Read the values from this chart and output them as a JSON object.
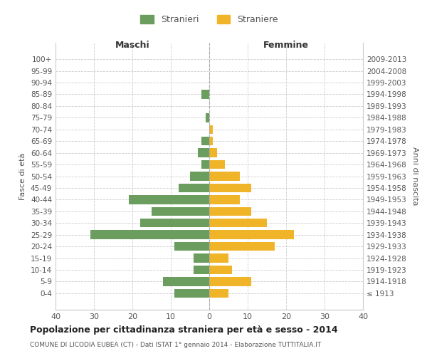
{
  "age_groups": [
    "100+",
    "95-99",
    "90-94",
    "85-89",
    "80-84",
    "75-79",
    "70-74",
    "65-69",
    "60-64",
    "55-59",
    "50-54",
    "45-49",
    "40-44",
    "35-39",
    "30-34",
    "25-29",
    "20-24",
    "15-19",
    "10-14",
    "5-9",
    "0-4"
  ],
  "birth_years": [
    "≤ 1913",
    "1914-1918",
    "1919-1923",
    "1924-1928",
    "1929-1933",
    "1934-1938",
    "1939-1943",
    "1944-1948",
    "1949-1953",
    "1954-1958",
    "1959-1963",
    "1964-1968",
    "1969-1973",
    "1974-1978",
    "1979-1983",
    "1984-1988",
    "1989-1993",
    "1994-1998",
    "1999-2003",
    "2004-2008",
    "2009-2013"
  ],
  "maschi": [
    0,
    0,
    0,
    2,
    0,
    1,
    0,
    2,
    3,
    2,
    5,
    8,
    21,
    15,
    18,
    31,
    9,
    4,
    4,
    12,
    9
  ],
  "femmine": [
    0,
    0,
    0,
    0,
    0,
    0,
    1,
    1,
    2,
    4,
    8,
    11,
    8,
    11,
    15,
    22,
    17,
    5,
    6,
    11,
    5
  ],
  "maschi_color": "#6b9e5e",
  "femmine_color": "#f0b429",
  "bg_color": "#ffffff",
  "grid_color": "#cccccc",
  "title": "Popolazione per cittadinanza straniera per età e sesso - 2014",
  "subtitle": "COMUNE DI LICODIA EUBEA (CT) - Dati ISTAT 1° gennaio 2014 - Elaborazione TUTTITALIA.IT",
  "ylabel_left": "Fasce di età",
  "ylabel_right": "Anni di nascita",
  "xlabel_left": "Maschi",
  "xlabel_top": "Femmine",
  "legend_stranieri": "Stranieri",
  "legend_straniere": "Straniere",
  "xlim": 40
}
